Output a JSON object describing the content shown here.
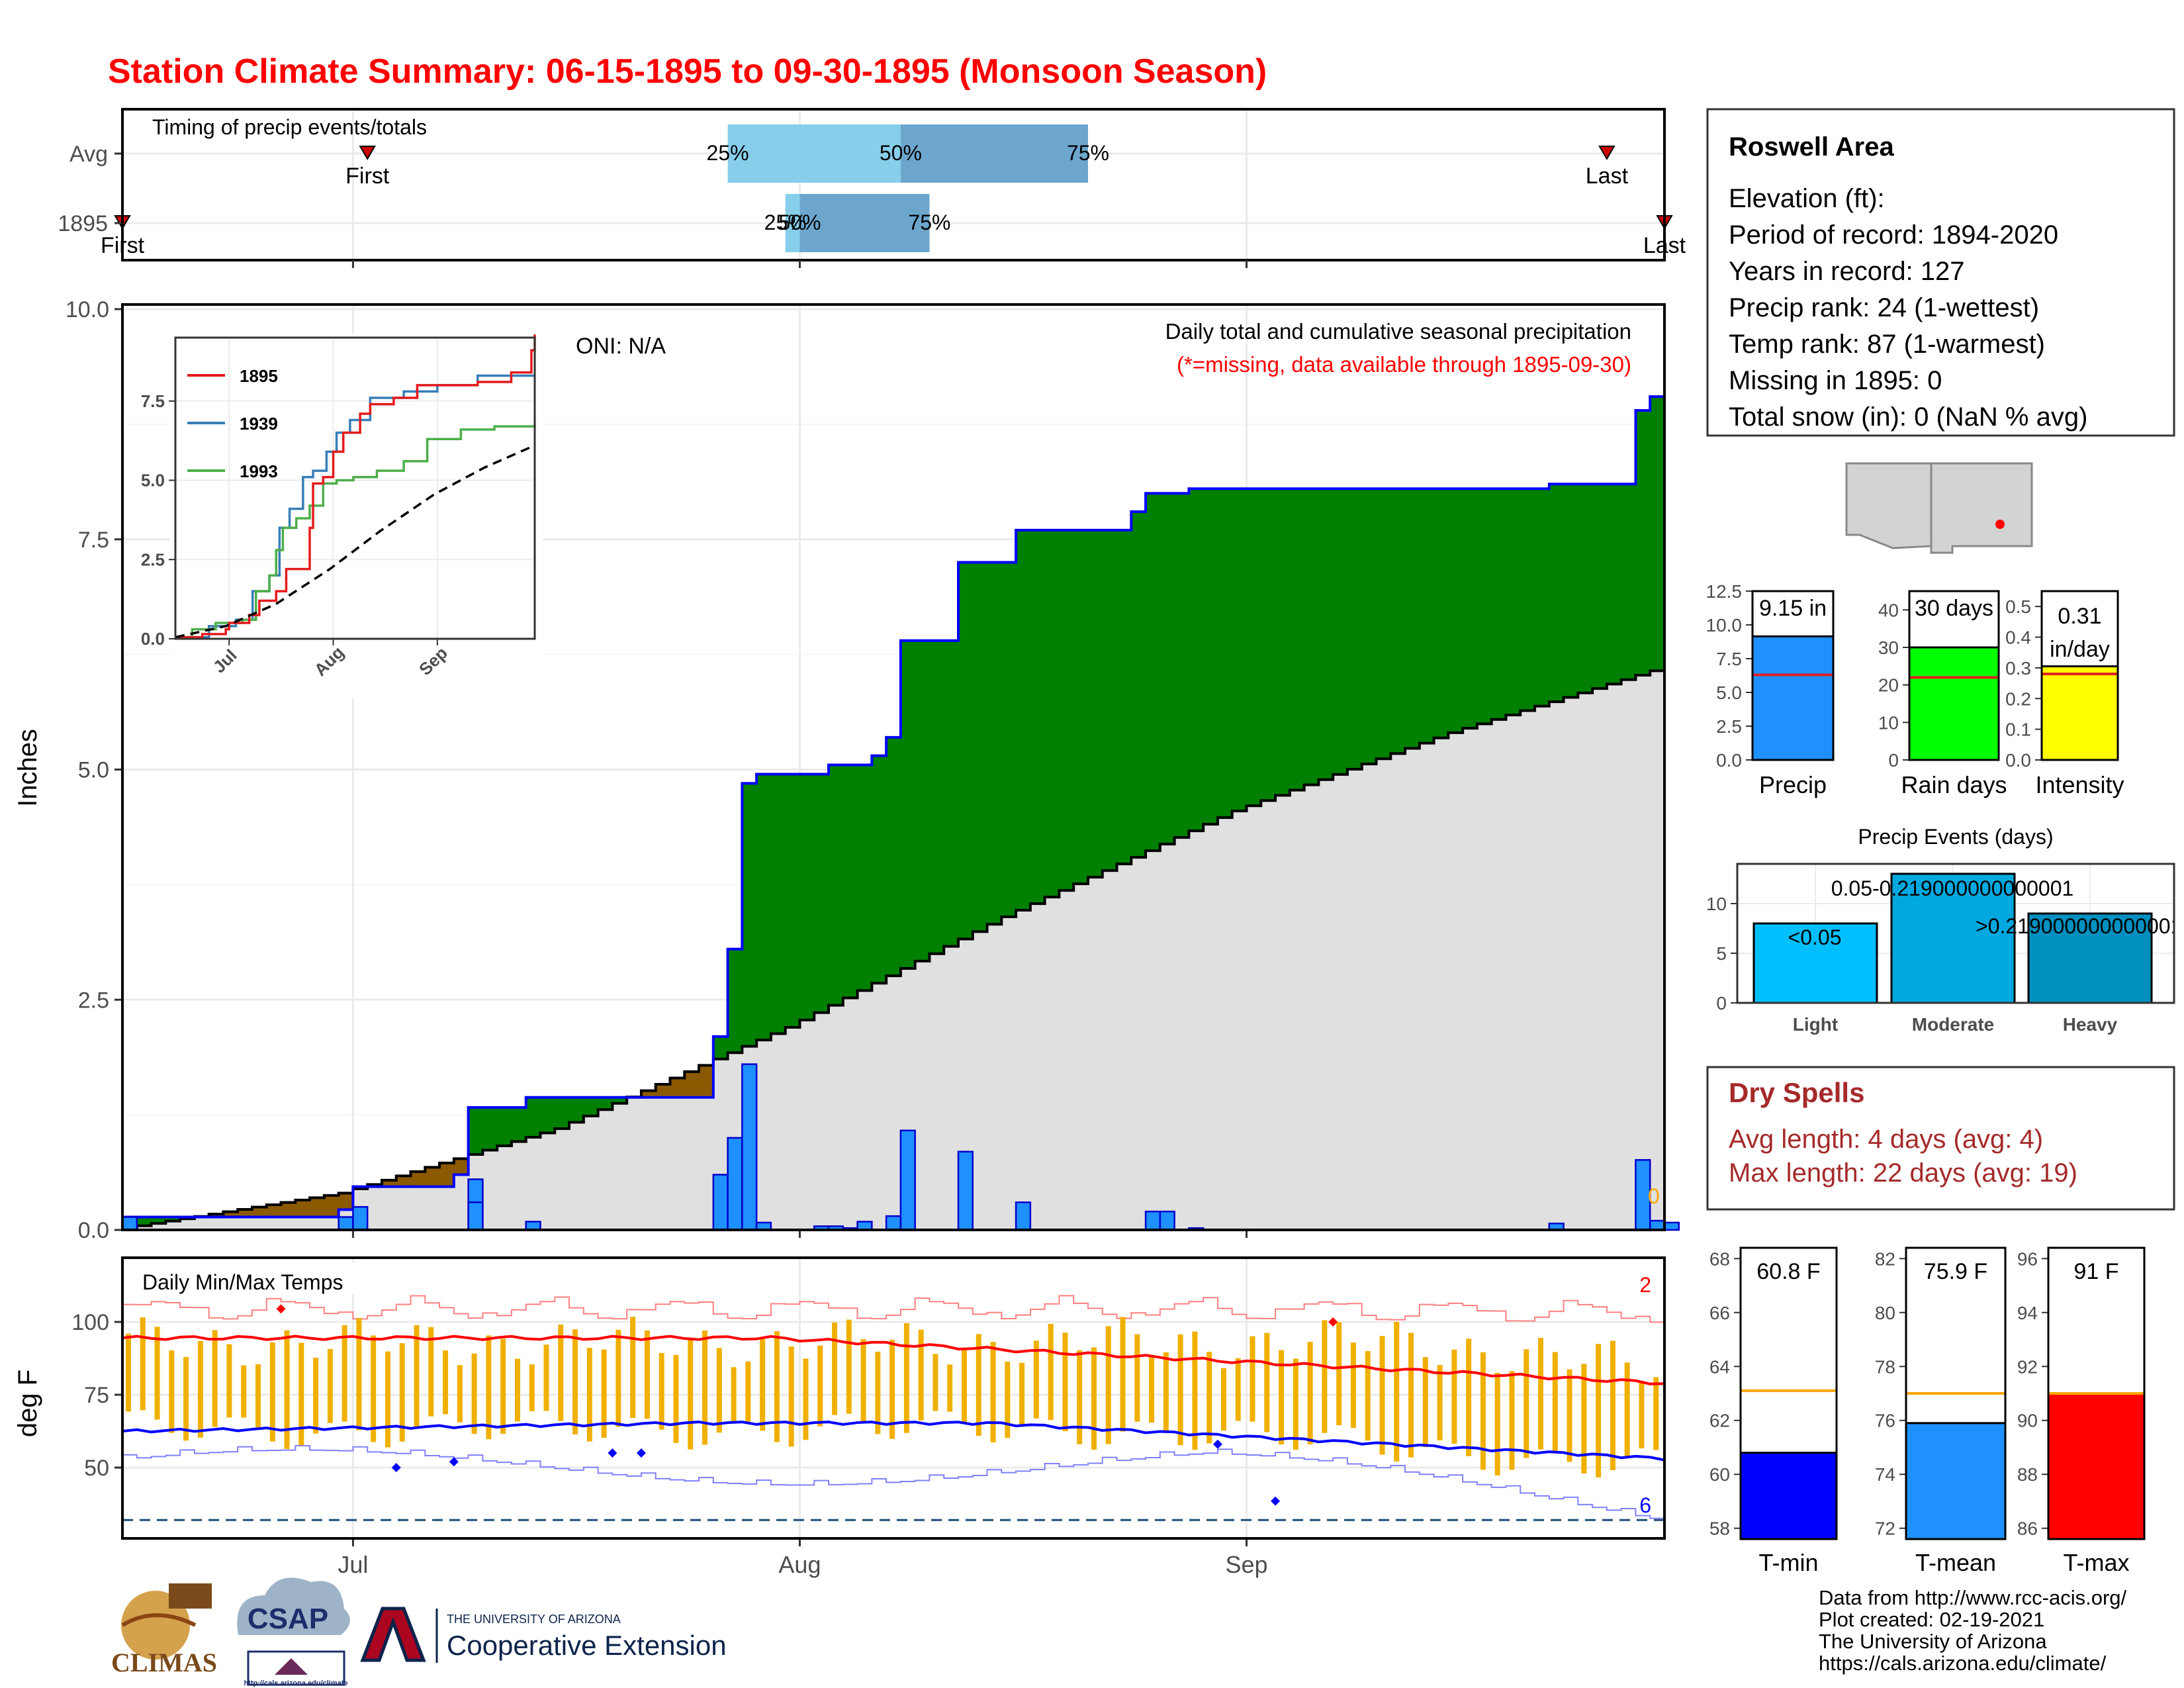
{
  "title": "Station Climate Summary: 06-15-1895 to 09-30-1895 (Monsoon Season)",
  "colors": {
    "title": "#ff0000",
    "green": "#008000",
    "brown": "#8b5a00",
    "gray": "#e0e0e0",
    "blue_bar": "#1e90ff",
    "orange": "#f0b000",
    "tmax": "#ff0000",
    "tmin": "#0000ff",
    "dry": "#a52a2a"
  },
  "timing": {
    "label": "Timing of precip events/totals",
    "rows": [
      {
        "name": "Avg",
        "first": "First",
        "last": "Last",
        "p25": "25%",
        "p50": "50%",
        "p75": "75%",
        "first_date": "1895-07-02",
        "last_date": "1895-09-26",
        "p25_date": "1895-07-27",
        "p50_date": "1895-08-08",
        "p75_date": "1895-08-21"
      },
      {
        "name": "1895",
        "first": "First",
        "last": "Last",
        "p25": "25%",
        "p50": "50%",
        "p75": "75%",
        "first_date": "1895-06-15",
        "last_date": "1895-09-30",
        "p25_date": "1895-07-31",
        "p50_date": "1895-08-01",
        "p75_date": "1895-08-10"
      }
    ]
  },
  "main_chart": {
    "ylabel": "Inches",
    "yticks": [
      "0.0",
      "2.5",
      "5.0",
      "7.5",
      "10.0"
    ],
    "xticks": [
      "Jul",
      "Aug",
      "Sep"
    ],
    "oni": "ONI: N/A",
    "caption": "Daily total and cumulative seasonal precipitation",
    "missing_note": "(*=missing, data available through 1895-09-30)",
    "missing_count": "0"
  },
  "inset": {
    "yticks": [
      "0.0",
      "2.5",
      "5.0",
      "7.5"
    ],
    "xticks": [
      "Jul",
      "Aug",
      "Sep"
    ],
    "legend": [
      {
        "name": "1895",
        "color": "#e41a1c"
      },
      {
        "name": "1939",
        "color": "#377eb8"
      },
      {
        "name": "1993",
        "color": "#4daf4a"
      }
    ]
  },
  "temp_chart": {
    "label": "Daily Min/Max Temps",
    "ylabel": "deg F",
    "yticks": [
      "50",
      "75",
      "100"
    ],
    "xticks": [
      "Jul",
      "Aug",
      "Sep"
    ],
    "record_high_count": "2",
    "record_low_count": "6"
  },
  "station": {
    "name": "Roswell Area",
    "lines": [
      "Elevation (ft):",
      "Period of record: 1894-2020",
      "Years in record: 127",
      "Precip rank: 24 (1-wettest)",
      "Temp rank: 87 (1-warmest)",
      "Missing in 1895: 0",
      "Total snow (in): 0 (NaN % avg)"
    ]
  },
  "summary_bars": [
    {
      "label": "Precip",
      "value_text": "9.15 in",
      "value": 9.15,
      "avg": 6.3,
      "ymax": 12.5,
      "ticks": [
        "0.0",
        "2.5",
        "5.0",
        "7.5",
        "10.0",
        "12.5"
      ],
      "color": "#1e90ff"
    },
    {
      "label": "Rain days",
      "value_text": "30 days",
      "value": 30,
      "avg": 22,
      "ymax": 45,
      "ticks": [
        "0",
        "10",
        "20",
        "30",
        "40"
      ],
      "color": "#00ff00"
    },
    {
      "label": "Intensity",
      "value_text": "0.31",
      "value_text2": "in/day",
      "value": 0.305,
      "avg": 0.28,
      "ymax": 0.55,
      "ticks": [
        "0.0",
        "0.1",
        "0.2",
        "0.3",
        "0.4",
        "0.5"
      ],
      "color": "#ffff00"
    }
  ],
  "events": {
    "title": "Precip Events (days)",
    "ticks": [
      "0",
      "5",
      "10"
    ],
    "bars": [
      {
        "label": "Light",
        "value": 8,
        "text": "<0.05",
        "color": "#00bfff"
      },
      {
        "label": "Moderate",
        "value": 13,
        "text": "0.05-0.219000000000001",
        "color": "#00a8e0"
      },
      {
        "label": "Heavy",
        "value": 9,
        "text": ">0.219000000000001",
        "color": "#0090c0"
      }
    ]
  },
  "dry_spells": {
    "title": "Dry Spells",
    "avg": "Avg length: 4 days (avg: 4)",
    "max": "Max length: 22 days (avg: 19)"
  },
  "temp_bars": [
    {
      "label": "T-min",
      "value_text": "60.8 F",
      "value": 60.8,
      "avg": 63.1,
      "ymin": 57.6,
      "ymax": 68.4,
      "ticks": [
        "58",
        "60",
        "62",
        "64",
        "66",
        "68"
      ],
      "color": "#0000ff"
    },
    {
      "label": "T-mean",
      "value_text": "75.9 F",
      "value": 75.9,
      "avg": 77.0,
      "ymin": 71.6,
      "ymax": 82.4,
      "ticks": [
        "72",
        "74",
        "76",
        "78",
        "80",
        "82"
      ],
      "color": "#1e90ff"
    },
    {
      "label": "T-max",
      "value_text": "91 F",
      "value": 91.0,
      "avg": 91.0,
      "ymin": 85.6,
      "ymax": 96.4,
      "ticks": [
        "86",
        "88",
        "90",
        "92",
        "94",
        "96"
      ],
      "color": "#ff0000"
    }
  ],
  "footer": {
    "lines": [
      "Data from http://www.rcc-acis.org/",
      "Plot created: 02-19-2021",
      "The University of Arizona",
      "https://cals.arizona.edu/climate/"
    ],
    "logo1": "CLIMAS",
    "logo2": "CSAP",
    "logo2_url": "http://cals.arizona.edu/climate",
    "logo3_top": "THE UNIVERSITY OF ARIZONA",
    "logo3_main": "Cooperative Extension"
  },
  "chart_data": {
    "type": "area",
    "title": "Daily total and cumulative seasonal precipitation",
    "ylabel": "Inches",
    "ylim": [
      0,
      10
    ],
    "xlim": [
      "1895-06-15",
      "1895-09-30"
    ],
    "daily_precip": [
      {
        "date": "1895-06-15",
        "value": 0.14
      },
      {
        "date": "1895-06-30",
        "value": 0.14
      },
      {
        "date": "1895-07-01",
        "value": 0.25
      },
      {
        "date": "1895-07-09",
        "value": 0.55
      },
      {
        "date": "1895-07-09",
        "value": 0.3
      },
      {
        "date": "1895-07-13",
        "value": 0.09
      },
      {
        "date": "1895-07-26",
        "value": 0.6
      },
      {
        "date": "1895-07-27",
        "value": 1.0
      },
      {
        "date": "1895-07-28",
        "value": 1.8
      },
      {
        "date": "1895-07-29",
        "value": 0.08
      },
      {
        "date": "1895-08-02",
        "value": 0.04
      },
      {
        "date": "1895-08-03",
        "value": 0.04
      },
      {
        "date": "1895-08-04",
        "value": 0.02
      },
      {
        "date": "1895-08-05",
        "value": 0.09
      },
      {
        "date": "1895-08-07",
        "value": 0.15
      },
      {
        "date": "1895-08-08",
        "value": 1.08
      },
      {
        "date": "1895-08-12",
        "value": 0.85
      },
      {
        "date": "1895-08-16",
        "value": 0.3
      },
      {
        "date": "1895-08-25",
        "value": 0.2
      },
      {
        "date": "1895-08-26",
        "value": 0.2
      },
      {
        "date": "1895-08-28",
        "value": 0.02
      },
      {
        "date": "1895-09-22",
        "value": 0.07
      },
      {
        "date": "1895-09-28",
        "value": 0.76
      },
      {
        "date": "1895-09-29",
        "value": 0.1
      },
      {
        "date": "1895-09-30",
        "value": 0.08
      }
    ],
    "cumulative_1895": [
      {
        "date": "1895-06-15",
        "value": 0.14
      },
      {
        "date": "1895-06-20",
        "value": 0.14
      },
      {
        "date": "1895-06-30",
        "value": 0.22
      },
      {
        "date": "1895-07-01",
        "value": 0.47
      },
      {
        "date": "1895-07-08",
        "value": 0.6
      },
      {
        "date": "1895-07-09",
        "value": 1.33
      },
      {
        "date": "1895-07-13",
        "value": 1.44
      },
      {
        "date": "1895-07-26",
        "value": 2.1
      },
      {
        "date": "1895-07-27",
        "value": 3.05
      },
      {
        "date": "1895-07-28",
        "value": 4.85
      },
      {
        "date": "1895-07-29",
        "value": 4.95
      },
      {
        "date": "1895-08-03",
        "value": 5.05
      },
      {
        "date": "1895-08-06",
        "value": 5.15
      },
      {
        "date": "1895-08-07",
        "value": 5.35
      },
      {
        "date": "1895-08-08",
        "value": 6.4
      },
      {
        "date": "1895-08-12",
        "value": 7.25
      },
      {
        "date": "1895-08-16",
        "value": 7.6
      },
      {
        "date": "1895-08-24",
        "value": 7.8
      },
      {
        "date": "1895-08-25",
        "value": 8.0
      },
      {
        "date": "1895-08-28",
        "value": 8.05
      },
      {
        "date": "1895-09-22",
        "value": 8.1
      },
      {
        "date": "1895-09-28",
        "value": 8.9
      },
      {
        "date": "1895-09-29",
        "value": 9.05
      },
      {
        "date": "1895-09-30",
        "value": 9.15
      }
    ],
    "cumulative_normal": [
      {
        "date": "1895-06-15",
        "value": 0.02
      },
      {
        "date": "1895-06-30",
        "value": 0.4
      },
      {
        "date": "1895-07-15",
        "value": 1.1
      },
      {
        "date": "1895-07-31",
        "value": 2.2
      },
      {
        "date": "1895-08-15",
        "value": 3.4
      },
      {
        "date": "1895-08-31",
        "value": 4.55
      },
      {
        "date": "1895-09-15",
        "value": 5.4
      },
      {
        "date": "1895-09-30",
        "value": 6.12
      }
    ]
  }
}
